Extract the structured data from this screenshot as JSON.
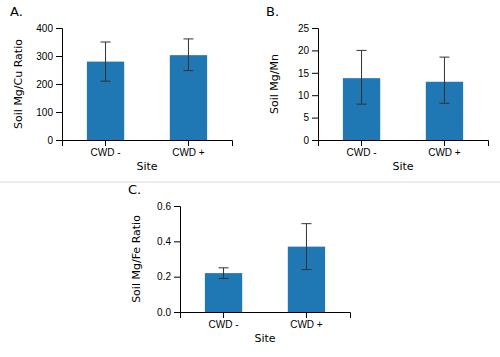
{
  "chart_data": [
    {
      "type": "bar",
      "title": "A.",
      "categories": [
        "CWD -",
        "CWD +"
      ],
      "values": [
        280,
        303
      ],
      "errors_upper": [
        70,
        58
      ],
      "errors_lower": [
        70,
        55
      ],
      "ylabel": "Soil Mg/Cu Ratio",
      "xlabel": "Site",
      "ylim": [
        0,
        400
      ],
      "yticks": [
        0,
        100,
        200,
        300,
        400
      ]
    },
    {
      "type": "bar",
      "title": "B.",
      "categories": [
        "CWD -",
        "CWD +"
      ],
      "values": [
        13.8,
        13.0
      ],
      "errors_upper": [
        6.2,
        5.5
      ],
      "errors_lower": [
        5.8,
        4.8
      ],
      "ylabel": "Soil Mg/Mn",
      "xlabel": "Site",
      "ylim": [
        0,
        25
      ],
      "yticks": [
        0,
        5,
        10,
        15,
        20,
        25
      ]
    },
    {
      "type": "bar",
      "title": "C.",
      "categories": [
        "CWD -",
        "CWD +"
      ],
      "values": [
        0.22,
        0.37
      ],
      "errors_upper": [
        0.03,
        0.13
      ],
      "errors_lower": [
        0.03,
        0.13
      ],
      "ylabel": "Soil Mg/Fe Ratio",
      "xlabel": "Site",
      "ylim": [
        0.0,
        0.6
      ],
      "yticks": [
        {
          "value": 0.0,
          "label": "0.0"
        },
        0.2,
        0.4,
        0.6
      ]
    }
  ]
}
